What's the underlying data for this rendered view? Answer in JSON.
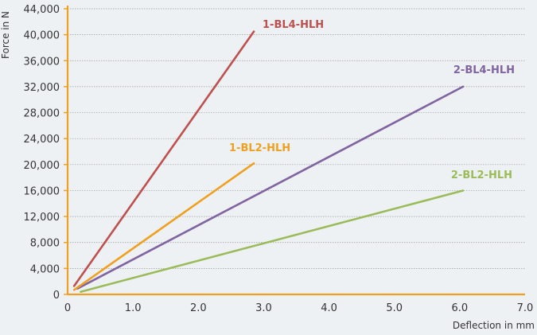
{
  "chart_data": {
    "type": "line",
    "title": "",
    "xlabel": "Deflection in mm",
    "ylabel": "Force in N",
    "xlim": [
      0,
      7
    ],
    "ylim": [
      0,
      44000
    ],
    "x_ticks": [
      "0",
      "1.0",
      "2.0",
      "3.0",
      "4.0",
      "5.0",
      "6.0",
      "7.0"
    ],
    "y_ticks": [
      "0",
      "4,000",
      "8,000",
      "12,000",
      "16,000",
      "20,000",
      "24,000",
      "28,000",
      "32,000",
      "36,000",
      "40,000",
      "44,000"
    ],
    "grid": true,
    "axis_color": "#f0a020",
    "series": [
      {
        "name": "1-BL4-HLH",
        "color": "#c0504d",
        "points": [
          [
            0.1,
            1300
          ],
          [
            2.85,
            40500
          ]
        ]
      },
      {
        "name": "2-BL4-HLH",
        "color": "#8064a2",
        "points": [
          [
            0.15,
            900
          ],
          [
            6.05,
            32000
          ]
        ]
      },
      {
        "name": "1-BL2-HLH",
        "color": "#f0a020",
        "points": [
          [
            0.1,
            700
          ],
          [
            2.85,
            20200
          ]
        ]
      },
      {
        "name": "2-BL2-HLH",
        "color": "#9bbb59",
        "points": [
          [
            0.2,
            400
          ],
          [
            6.05,
            16000
          ]
        ]
      }
    ]
  }
}
